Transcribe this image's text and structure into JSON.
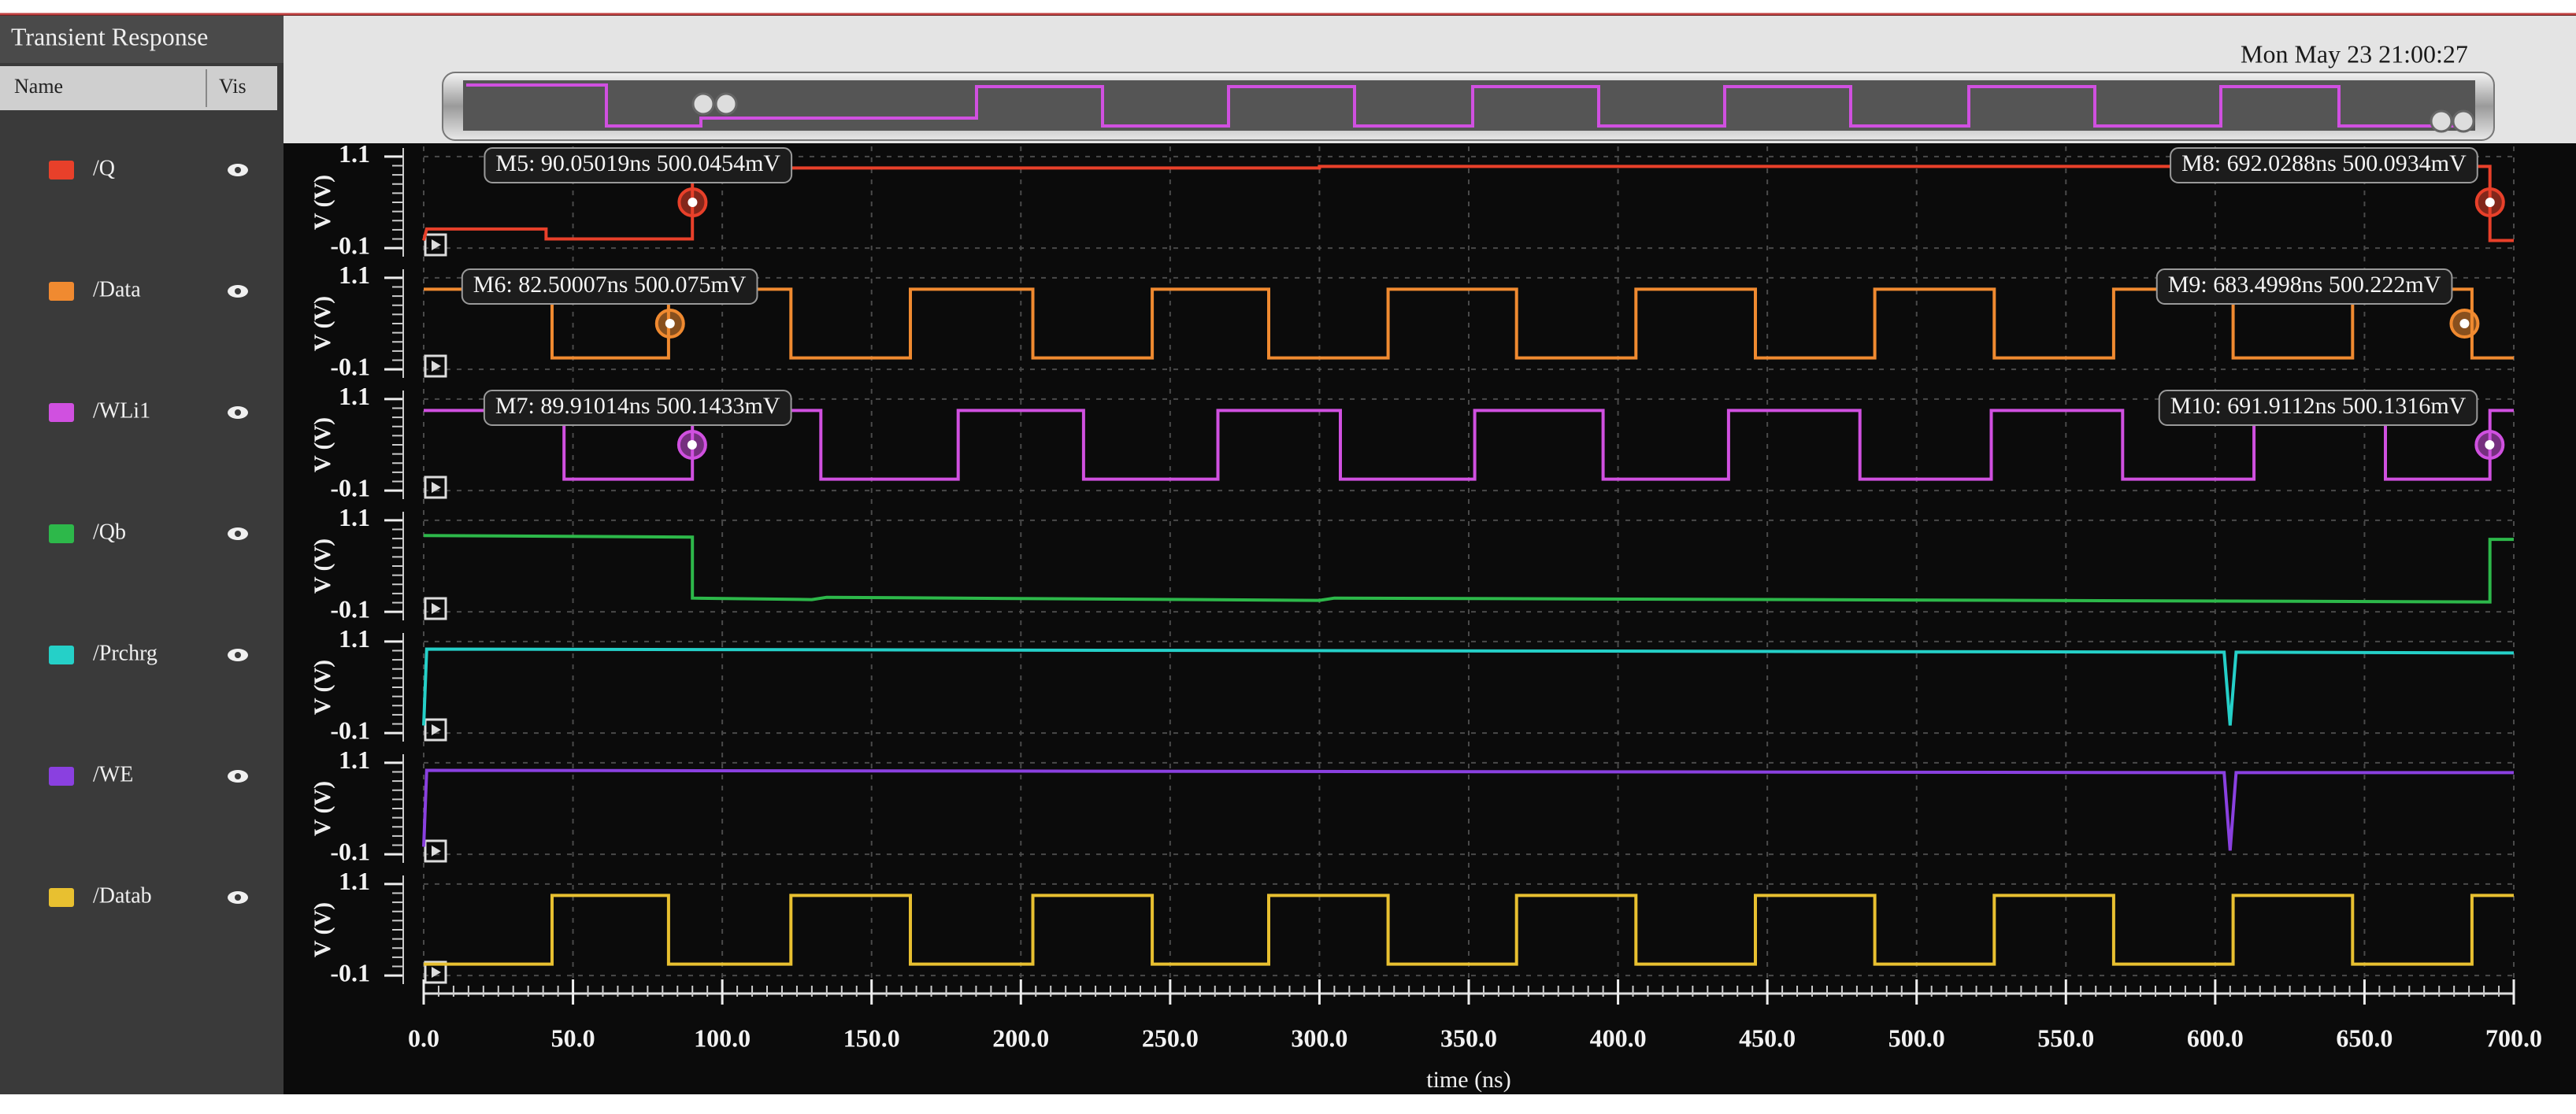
{
  "window_title": "Transient Response",
  "columns": [
    "Name",
    "Vis"
  ],
  "timestamp": "Mon May 23 21:00:27",
  "chart_data": [
    {
      "type": "line",
      "ylabel": "V (V)",
      "grid": true,
      "xlim": [
        0,
        700
      ],
      "ylim": [
        -0.15,
        1.15
      ],
      "yticks": [
        -0.1,
        1.1
      ],
      "x": [
        0,
        1,
        41,
        41,
        90,
        90,
        300,
        300,
        692,
        692,
        700
      ],
      "series": [
        {
          "name": "/Q",
          "color": "#e8402a",
          "values": [
            0,
            0.15,
            0.15,
            0.02,
            0.02,
            0.95,
            0.95,
            0.97,
            0.97,
            0,
            0
          ]
        }
      ],
      "annotations": [
        {
          "label": "M5: 90.05019ns 500.0454mV",
          "x": 90.05019,
          "y": 0.5000454
        },
        {
          "label": "M8: 692.0288ns 500.0934mV",
          "x": 692.0288,
          "y": 0.5000934
        }
      ]
    },
    {
      "type": "line",
      "ylabel": "V (V)",
      "grid": true,
      "xlim": [
        0,
        700
      ],
      "ylim": [
        -0.15,
        1.15
      ],
      "yticks": [
        -0.1,
        1.1
      ],
      "x": [
        0,
        43,
        43,
        82,
        82,
        123,
        123,
        163,
        163,
        204,
        204,
        244,
        244,
        283,
        283,
        323,
        323,
        366,
        366,
        406,
        406,
        446,
        446,
        486,
        486,
        526,
        526,
        566,
        566,
        606,
        606,
        646,
        646,
        686,
        686,
        700
      ],
      "series": [
        {
          "name": "/Data",
          "color": "#f08a30",
          "values": [
            0.95,
            0.95,
            0.05,
            0.05,
            0.95,
            0.95,
            0.05,
            0.05,
            0.95,
            0.95,
            0.05,
            0.05,
            0.95,
            0.95,
            0.05,
            0.05,
            0.95,
            0.95,
            0.05,
            0.05,
            0.95,
            0.95,
            0.05,
            0.05,
            0.95,
            0.95,
            0.05,
            0.05,
            0.95,
            0.95,
            0.05,
            0.05,
            0.95,
            0.95,
            0.05,
            0.05
          ]
        }
      ],
      "annotations": [
        {
          "label": "M6: 82.50007ns 500.075mV",
          "x": 82.50007,
          "y": 0.500075
        },
        {
          "label": "M9: 683.4998ns 500.222mV",
          "x": 683.4998,
          "y": 0.500222
        }
      ]
    },
    {
      "type": "line",
      "ylabel": "V (V)",
      "grid": true,
      "xlim": [
        0,
        700
      ],
      "ylim": [
        -0.15,
        1.15
      ],
      "yticks": [
        -0.1,
        1.1
      ],
      "x": [
        0,
        47,
        47,
        90,
        90,
        133,
        133,
        179,
        179,
        221,
        221,
        266,
        266,
        307,
        307,
        352,
        352,
        395,
        395,
        437,
        437,
        481,
        481,
        525,
        525,
        569,
        569,
        613,
        613,
        657,
        657,
        692,
        692,
        700
      ],
      "series": [
        {
          "name": "/WLi1",
          "color": "#d050e0",
          "values": [
            0.95,
            0.95,
            0.05,
            0.05,
            0.95,
            0.95,
            0.05,
            0.05,
            0.95,
            0.95,
            0.05,
            0.05,
            0.95,
            0.95,
            0.05,
            0.05,
            0.95,
            0.95,
            0.05,
            0.05,
            0.95,
            0.95,
            0.05,
            0.05,
            0.95,
            0.95,
            0.05,
            0.05,
            0.95,
            0.95,
            0.05,
            0.05,
            0.95,
            0.95
          ]
        }
      ],
      "annotations": [
        {
          "label": "M7: 89.91014ns 500.1433mV",
          "x": 89.91014,
          "y": 0.5001433
        },
        {
          "label": "M10: 691.9112ns 500.1316mV",
          "x": 691.9112,
          "y": 0.5001316
        }
      ]
    },
    {
      "type": "line",
      "ylabel": "V (V)",
      "grid": true,
      "xlim": [
        0,
        700
      ],
      "ylim": [
        -0.15,
        1.15
      ],
      "yticks": [
        -0.1,
        1.1
      ],
      "x": [
        0,
        90,
        90,
        130,
        135,
        300,
        305,
        692,
        692,
        700
      ],
      "series": [
        {
          "name": "/Qb",
          "color": "#2db84a",
          "values": [
            0.9,
            0.88,
            0.08,
            0.06,
            0.09,
            0.05,
            0.08,
            0.03,
            0.85,
            0.85
          ]
        }
      ]
    },
    {
      "type": "line",
      "ylabel": "V (V)",
      "grid": true,
      "xlim": [
        0,
        700
      ],
      "ylim": [
        -0.15,
        1.15
      ],
      "yticks": [
        -0.1,
        1.1
      ],
      "x": [
        0,
        1,
        603,
        605,
        607,
        700
      ],
      "series": [
        {
          "name": "/Prchrg",
          "color": "#25d0c8",
          "values": [
            0,
            1.0,
            0.96,
            0.0,
            0.96,
            0.95
          ]
        }
      ]
    },
    {
      "type": "line",
      "ylabel": "V (V)",
      "grid": true,
      "xlim": [
        0,
        700
      ],
      "ylim": [
        -0.15,
        1.15
      ],
      "yticks": [
        -0.1,
        1.1
      ],
      "x": [
        0,
        1,
        603,
        605,
        607,
        700
      ],
      "series": [
        {
          "name": "/WE",
          "color": "#8a40e0",
          "values": [
            0,
            1.0,
            0.97,
            -0.05,
            0.97,
            0.97
          ]
        }
      ]
    },
    {
      "type": "line",
      "ylabel": "V (V)",
      "grid": true,
      "xlim": [
        0,
        700
      ],
      "ylim": [
        -0.15,
        1.15
      ],
      "yticks": [
        -0.1,
        1.1
      ],
      "xlabel": "time (ns)",
      "xticks": [
        {
          "value": 0,
          "label": "0.0"
        },
        {
          "value": 50,
          "label": "50.0"
        },
        {
          "value": 100,
          "label": "100.0"
        },
        {
          "value": 150,
          "label": "150.0"
        },
        {
          "value": 200,
          "label": "200.0"
        },
        {
          "value": 250,
          "label": "250.0"
        },
        {
          "value": 300,
          "label": "300.0"
        },
        {
          "value": 350,
          "label": "350.0"
        },
        {
          "value": 400,
          "label": "400.0"
        },
        {
          "value": 450,
          "label": "450.0"
        },
        {
          "value": 500,
          "label": "500.0"
        },
        {
          "value": 550,
          "label": "550.0"
        },
        {
          "value": 600,
          "label": "600.0"
        },
        {
          "value": 650,
          "label": "650.0"
        },
        {
          "value": 700,
          "label": "700.0"
        }
      ],
      "x": [
        0,
        43,
        43,
        82,
        82,
        123,
        123,
        163,
        163,
        204,
        204,
        244,
        244,
        283,
        283,
        323,
        323,
        366,
        366,
        406,
        406,
        446,
        446,
        486,
        486,
        526,
        526,
        566,
        566,
        606,
        606,
        646,
        646,
        686,
        686,
        700
      ],
      "series": [
        {
          "name": "/Datab",
          "color": "#e8c030",
          "values": [
            0.05,
            0.05,
            0.95,
            0.95,
            0.05,
            0.05,
            0.95,
            0.95,
            0.05,
            0.05,
            0.95,
            0.95,
            0.05,
            0.05,
            0.95,
            0.95,
            0.05,
            0.05,
            0.95,
            0.95,
            0.05,
            0.05,
            0.95,
            0.95,
            0.05,
            0.05,
            0.95,
            0.95,
            0.05,
            0.05,
            0.95,
            0.95,
            0.05,
            0.05,
            0.95,
            0.95
          ]
        }
      ]
    }
  ]
}
